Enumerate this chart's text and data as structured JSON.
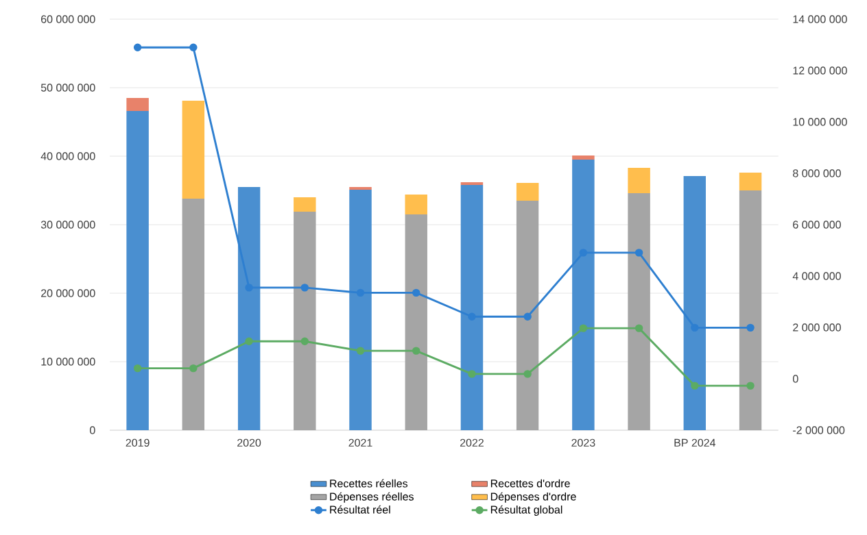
{
  "chart_data": {
    "type": "bar",
    "stacked": true,
    "grid": "y",
    "legend": "bottom",
    "categories": [
      "2019",
      null,
      "2020",
      null,
      "2021",
      null,
      "2022",
      null,
      "2023",
      null,
      "BP 2024",
      null
    ],
    "series": [
      {
        "name": "Recettes réelles",
        "color": "#4a8fd0",
        "values": [
          46600000,
          null,
          35500000,
          null,
          35100000,
          null,
          35800000,
          null,
          39500000,
          null,
          37100000,
          null
        ]
      },
      {
        "name": "Recettes d'ordre",
        "color": "#e8826a",
        "values": [
          1900000,
          null,
          null,
          null,
          400000,
          null,
          400000,
          null,
          600000,
          null,
          null,
          null
        ]
      },
      {
        "name": "Dépenses réelles",
        "color": "#a5a5a5",
        "values": [
          null,
          33800000,
          null,
          31900000,
          null,
          31500000,
          null,
          33500000,
          null,
          34600000,
          null,
          35000000
        ]
      },
      {
        "name": "Dépenses d'ordre",
        "color": "#ffbe4d",
        "values": [
          null,
          14300000,
          null,
          2100000,
          null,
          2900000,
          null,
          2600000,
          null,
          3700000,
          null,
          2600000
        ]
      },
      {
        "name": "Résultat réel",
        "type": "line",
        "axis": "y2",
        "marker": "circle",
        "line_style": "solid",
        "color": "#2e7fd0",
        "values": [
          12900000,
          12900000,
          3550000,
          3550000,
          3350000,
          3350000,
          2420000,
          2420000,
          4910000,
          4910000,
          1990000,
          1990000
        ]
      },
      {
        "name": "Résultat global",
        "type": "line",
        "axis": "y2",
        "marker": "circle",
        "line_style": "solid",
        "color": "#5cab63",
        "values": [
          410000,
          410000,
          1460000,
          1460000,
          1090000,
          1090000,
          190000,
          190000,
          1970000,
          1970000,
          -270000,
          -270000
        ]
      }
    ],
    "ylim": [
      0,
      60000000
    ],
    "yticks": [
      0,
      {
        "value": 10000000,
        "label": "10 000 000"
      },
      {
        "value": 20000000,
        "label": "20 000 000"
      },
      {
        "value": 30000000,
        "label": "30 000 000"
      },
      {
        "value": 40000000,
        "label": "40 000 000"
      },
      {
        "value": 50000000,
        "label": "50 000 000"
      },
      {
        "value": 60000000,
        "label": "60 000 000"
      }
    ],
    "y2lim": [
      -2000000,
      14000000
    ],
    "y2ticks": [
      {
        "value": -2000000,
        "label": "-2 000 000"
      },
      0,
      {
        "value": 2000000,
        "label": "2 000 000"
      },
      {
        "value": 4000000,
        "label": "4 000 000"
      },
      {
        "value": 6000000,
        "label": "6 000 000"
      },
      {
        "value": 8000000,
        "label": "8 000 000"
      },
      {
        "value": 10000000,
        "label": "10 000 000"
      },
      {
        "value": 12000000,
        "label": "12 000 000"
      },
      {
        "value": 14000000,
        "label": "14 000 000"
      }
    ]
  }
}
